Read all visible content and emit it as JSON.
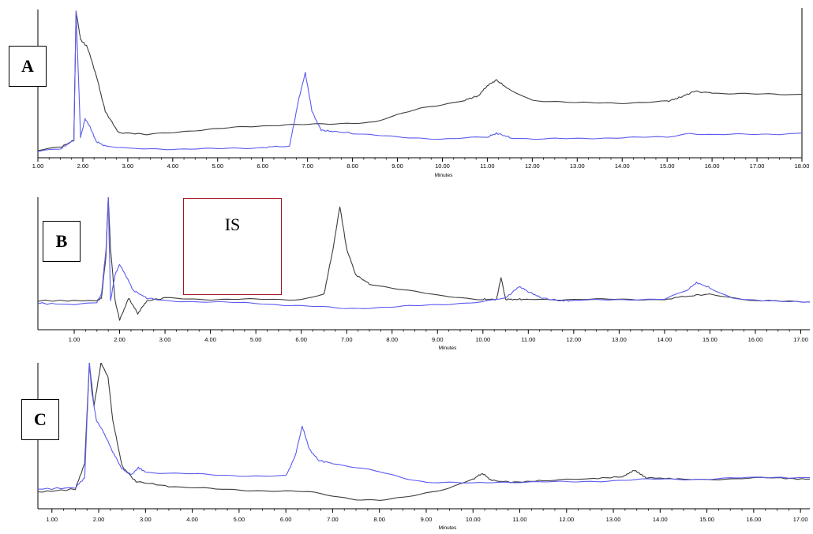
{
  "labels": {
    "a": "A",
    "b": "B",
    "c": "C",
    "is": "IS"
  },
  "colors": {
    "series_dark": "#3d3d3d",
    "series_blue": "#5b5bf0",
    "is_box": "#a0191e"
  },
  "chart_data": [
    {
      "type": "line",
      "panel": "A",
      "xlabel": "Minutes",
      "xlim": [
        1.0,
        18.0
      ],
      "xticks": [
        "1.00",
        "2.00",
        "3.00",
        "4.00",
        "5.00",
        "6.00",
        "7.00",
        "8.00",
        "9.00",
        "10.00",
        "11.00",
        "12.00",
        "13.00",
        "14.00",
        "15.00",
        "16.00",
        "17.00",
        "18.00"
      ],
      "series": [
        {
          "color": "#3d3d3d",
          "x": [
            1.0,
            1.5,
            1.8,
            1.85,
            1.95,
            2.1,
            2.3,
            2.5,
            2.8,
            3.5,
            4.5,
            5.5,
            6.5,
            7.0,
            7.5,
            8.5,
            9.5,
            10.5,
            10.8,
            11.0,
            11.2,
            11.5,
            12.0,
            13.0,
            14.0,
            15.0,
            15.3,
            15.6,
            16.0,
            17.0,
            18.0
          ],
          "y": [
            0.03,
            0.05,
            0.1,
            1.0,
            0.8,
            0.75,
            0.55,
            0.3,
            0.15,
            0.14,
            0.17,
            0.19,
            0.21,
            0.21,
            0.21,
            0.23,
            0.32,
            0.38,
            0.41,
            0.48,
            0.52,
            0.45,
            0.38,
            0.36,
            0.36,
            0.37,
            0.4,
            0.44,
            0.43,
            0.42,
            0.42
          ]
        },
        {
          "color": "#5b5bf0",
          "x": [
            1.0,
            1.5,
            1.8,
            1.85,
            1.95,
            2.05,
            2.15,
            2.3,
            2.5,
            3.0,
            4.0,
            5.0,
            6.0,
            6.6,
            6.8,
            6.95,
            7.1,
            7.3,
            7.6,
            8.0,
            9.0,
            10.0,
            11.0,
            11.2,
            11.5,
            12.0,
            13.0,
            14.0,
            15.0,
            15.5,
            16.0,
            17.0,
            18.0
          ],
          "y": [
            0.02,
            0.04,
            0.1,
            1.0,
            0.12,
            0.25,
            0.2,
            0.09,
            0.06,
            0.04,
            0.04,
            0.04,
            0.05,
            0.06,
            0.38,
            0.57,
            0.3,
            0.17,
            0.16,
            0.15,
            0.12,
            0.11,
            0.12,
            0.15,
            0.12,
            0.11,
            0.11,
            0.12,
            0.12,
            0.15,
            0.14,
            0.14,
            0.15
          ]
        }
      ]
    },
    {
      "type": "line",
      "panel": "B",
      "xlabel": "Minutes",
      "xlim": [
        0.2,
        17.2
      ],
      "xticks": [
        "1.00",
        "2.00",
        "3.00",
        "4.00",
        "5.00",
        "6.00",
        "7.00",
        "8.00",
        "9.00",
        "10.00",
        "11.00",
        "12.00",
        "13.00",
        "14.00",
        "15.00",
        "16.00",
        "17.00"
      ],
      "series": [
        {
          "color": "#3d3d3d",
          "x": [
            0.2,
            1.5,
            1.6,
            1.7,
            1.75,
            1.8,
            1.9,
            2.0,
            2.2,
            2.4,
            2.6,
            3.0,
            4.0,
            5.0,
            6.0,
            6.5,
            6.7,
            6.85,
            7.0,
            7.2,
            7.5,
            8.0,
            9.0,
            10.0,
            10.3,
            10.4,
            10.5,
            10.7,
            11.0,
            12.0,
            13.0,
            14.0,
            14.6,
            15.0,
            16.0,
            17.2
          ],
          "y": [
            0.2,
            0.2,
            0.22,
            0.55,
            1.0,
            0.6,
            0.2,
            0.05,
            0.22,
            0.1,
            0.2,
            0.22,
            0.21,
            0.21,
            0.21,
            0.25,
            0.6,
            0.93,
            0.6,
            0.4,
            0.33,
            0.3,
            0.24,
            0.21,
            0.21,
            0.38,
            0.21,
            0.21,
            0.21,
            0.21,
            0.21,
            0.21,
            0.24,
            0.25,
            0.2,
            0.19
          ]
        },
        {
          "color": "#5b5bf0",
          "x": [
            0.2,
            1.0,
            1.5,
            1.6,
            1.7,
            1.75,
            1.8,
            1.9,
            2.0,
            2.1,
            2.3,
            2.6,
            3.0,
            4.0,
            5.0,
            6.0,
            7.0,
            8.0,
            9.0,
            10.0,
            10.5,
            10.8,
            11.0,
            11.3,
            11.7,
            12.0,
            13.0,
            14.0,
            14.5,
            14.7,
            15.0,
            15.5,
            16.0,
            17.2
          ],
          "y": [
            0.18,
            0.17,
            0.19,
            0.25,
            0.6,
            1.0,
            0.2,
            0.4,
            0.48,
            0.42,
            0.28,
            0.22,
            0.2,
            0.19,
            0.18,
            0.16,
            0.14,
            0.15,
            0.17,
            0.19,
            0.22,
            0.31,
            0.27,
            0.22,
            0.2,
            0.2,
            0.21,
            0.21,
            0.28,
            0.34,
            0.3,
            0.22,
            0.2,
            0.19
          ]
        }
      ]
    },
    {
      "type": "line",
      "panel": "C",
      "xlabel": "Minutes",
      "xlim": [
        0.7,
        17.2
      ],
      "xticks": [
        "1.00",
        "2.00",
        "3.00",
        "4.00",
        "5.00",
        "6.00",
        "7.00",
        "8.00",
        "9.00",
        "10.00",
        "11.00",
        "12.00",
        "13.00",
        "14.00",
        "15.00",
        "16.00",
        "17.00"
      ],
      "series": [
        {
          "color": "#3d3d3d",
          "x": [
            0.7,
            1.5,
            1.7,
            1.8,
            1.9,
            2.05,
            2.2,
            2.3,
            2.5,
            2.8,
            3.5,
            4.5,
            5.5,
            6.5,
            7.5,
            8.0,
            8.5,
            9.5,
            10.0,
            10.2,
            10.4,
            10.8,
            11.5,
            12.5,
            13.2,
            13.45,
            13.7,
            14.5,
            15.5,
            16.5,
            17.2
          ],
          "y": [
            0.1,
            0.12,
            0.3,
            1.0,
            0.7,
            1.0,
            0.9,
            0.6,
            0.28,
            0.17,
            0.14,
            0.12,
            0.11,
            0.1,
            0.05,
            0.04,
            0.06,
            0.13,
            0.19,
            0.23,
            0.18,
            0.17,
            0.18,
            0.19,
            0.21,
            0.25,
            0.2,
            0.19,
            0.19,
            0.2,
            0.19
          ]
        },
        {
          "color": "#5b5bf0",
          "x": [
            0.7,
            1.5,
            1.7,
            1.8,
            1.85,
            1.95,
            2.1,
            2.3,
            2.5,
            2.7,
            2.85,
            3.0,
            3.5,
            4.5,
            5.5,
            6.0,
            6.2,
            6.35,
            6.5,
            6.7,
            7.0,
            7.5,
            8.0,
            8.5,
            9.0,
            10.0,
            10.5,
            11.0,
            12.0,
            13.0,
            14.0,
            15.0,
            16.0,
            17.2
          ],
          "y": [
            0.12,
            0.13,
            0.2,
            1.0,
            0.8,
            0.6,
            0.52,
            0.38,
            0.26,
            0.22,
            0.27,
            0.24,
            0.23,
            0.22,
            0.21,
            0.21,
            0.35,
            0.56,
            0.4,
            0.32,
            0.3,
            0.27,
            0.24,
            0.2,
            0.17,
            0.16,
            0.17,
            0.17,
            0.17,
            0.18,
            0.19,
            0.19,
            0.2,
            0.2
          ]
        }
      ]
    }
  ]
}
